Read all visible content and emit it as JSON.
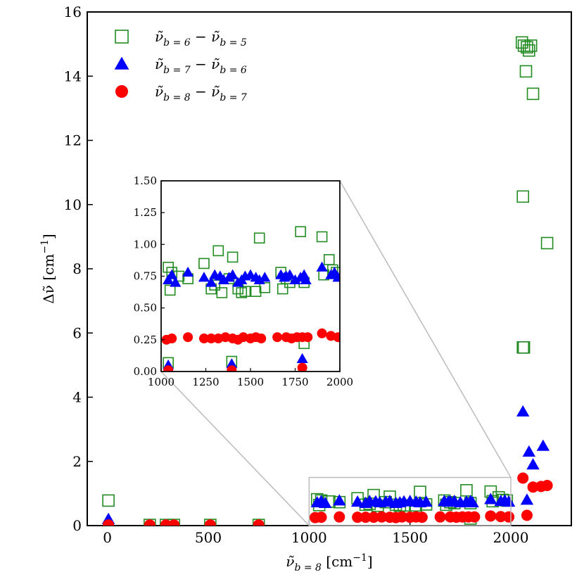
{
  "chart_data": {
    "type": "scatter",
    "title": "",
    "xlabel": "ν̃",
    "xlabel_sub": "b = 8",
    "xlabel_unit": " [cm",
    "xlabel_unit_exp": "−1",
    "xlabel_unit_close": "]",
    "ylabel": "Δν̃ [cm",
    "ylabel_exp": "−1",
    "ylabel_close": "]",
    "xlim": [
      -100,
      2300
    ],
    "ylim": [
      0,
      16
    ],
    "xticks": [
      0,
      500,
      1000,
      1500,
      2000
    ],
    "yticks": [
      0,
      2,
      4,
      6,
      8,
      10,
      12,
      14,
      16
    ],
    "legend_position": "top-left",
    "series": [
      {
        "name": "b6-b5",
        "legend_parts": [
          "ν̃",
          "b = 6",
          " − ",
          "ν̃",
          "b = 5"
        ],
        "marker": "square-open",
        "color": "#228B22",
        "x": [
          5,
          210,
          290,
          330,
          510,
          750,
          1040,
          1050,
          1060,
          1100,
          1150,
          1240,
          1280,
          1300,
          1320,
          1340,
          1380,
          1400,
          1430,
          1450,
          1470,
          1530,
          1550,
          1580,
          1670,
          1680,
          1700,
          1720,
          1780,
          1800,
          1800,
          1900,
          1910,
          1940,
          1960,
          1980,
          2055,
          2065,
          2075,
          2080,
          2090,
          2100,
          2110,
          2060,
          2065,
          2180,
          2060
        ],
        "y": [
          0.78,
          0.02,
          0.02,
          0.02,
          0.02,
          0.02,
          0.82,
          0.64,
          0.78,
          0.75,
          0.73,
          0.85,
          0.65,
          0.68,
          0.95,
          0.62,
          0.73,
          0.9,
          0.65,
          0.62,
          0.63,
          0.63,
          1.05,
          0.66,
          0.78,
          0.65,
          0.73,
          0.7,
          1.1,
          0.7,
          0.22,
          1.06,
          0.76,
          0.88,
          0.8,
          0.78,
          15.05,
          14.95,
          14.15,
          14.9,
          14.8,
          14.95,
          13.45,
          10.25,
          5.55,
          8.8,
          5.55
        ]
      },
      {
        "name": "b7-b6",
        "legend_parts": [
          "ν̃",
          "b = 7",
          " − ",
          "ν̃",
          "b = 6"
        ],
        "marker": "triangle-filled",
        "color": "#0000FF",
        "x": [
          5,
          1040,
          1060,
          1080,
          1150,
          1240,
          1280,
          1300,
          1330,
          1350,
          1380,
          1400,
          1430,
          1450,
          1470,
          1500,
          1530,
          1550,
          1580,
          1670,
          1690,
          1700,
          1720,
          1750,
          1780,
          1800,
          1810,
          1900,
          1950,
          1970,
          1990,
          2060,
          2090,
          2110,
          2160,
          2080
        ],
        "y": [
          0.2,
          0.72,
          0.76,
          0.7,
          0.78,
          0.74,
          0.7,
          0.76,
          0.75,
          0.72,
          0.74,
          0.76,
          0.7,
          0.72,
          0.75,
          0.76,
          0.74,
          0.72,
          0.74,
          0.76,
          0.74,
          0.75,
          0.76,
          0.72,
          0.74,
          0.76,
          0.72,
          0.82,
          0.76,
          0.78,
          0.74,
          3.55,
          2.3,
          1.9,
          2.48,
          0.8
        ]
      },
      {
        "name": "b8-b7",
        "legend_parts": [
          "ν̃",
          "b = 8",
          " − ",
          "ν̃",
          "b = 7"
        ],
        "marker": "circle-filled",
        "color": "#FF0000",
        "x": [
          5,
          210,
          290,
          330,
          510,
          750,
          1030,
          1060,
          1150,
          1240,
          1280,
          1320,
          1360,
          1400,
          1430,
          1460,
          1500,
          1530,
          1560,
          1650,
          1700,
          1730,
          1760,
          1790,
          1820,
          1900,
          1950,
          1990,
          2060,
          2080,
          2110,
          2150,
          2180
        ],
        "y": [
          0.02,
          0.02,
          0.02,
          0.02,
          0.02,
          0.02,
          0.25,
          0.26,
          0.27,
          0.26,
          0.26,
          0.26,
          0.27,
          0.26,
          0.25,
          0.27,
          0.26,
          0.27,
          0.26,
          0.27,
          0.27,
          0.26,
          0.27,
          0.27,
          0.27,
          0.3,
          0.28,
          0.27,
          1.48,
          0.32,
          1.2,
          1.22,
          1.25
        ]
      }
    ],
    "inset": {
      "xlim": [
        1000,
        2000
      ],
      "ylim": [
        0,
        1.5
      ],
      "xticks": [
        1000,
        1250,
        1500,
        1750,
        2000
      ],
      "yticks": [
        0.0,
        0.25,
        0.5,
        0.75,
        1.0,
        1.25,
        1.5
      ],
      "ytick_labels": [
        "0.00",
        "0.25",
        "0.50",
        "0.75",
        "1.00",
        "1.25",
        "1.50"
      ],
      "zoom_region": {
        "x": [
          1000,
          2000
        ],
        "y": [
          0,
          1.5
        ]
      }
    }
  }
}
